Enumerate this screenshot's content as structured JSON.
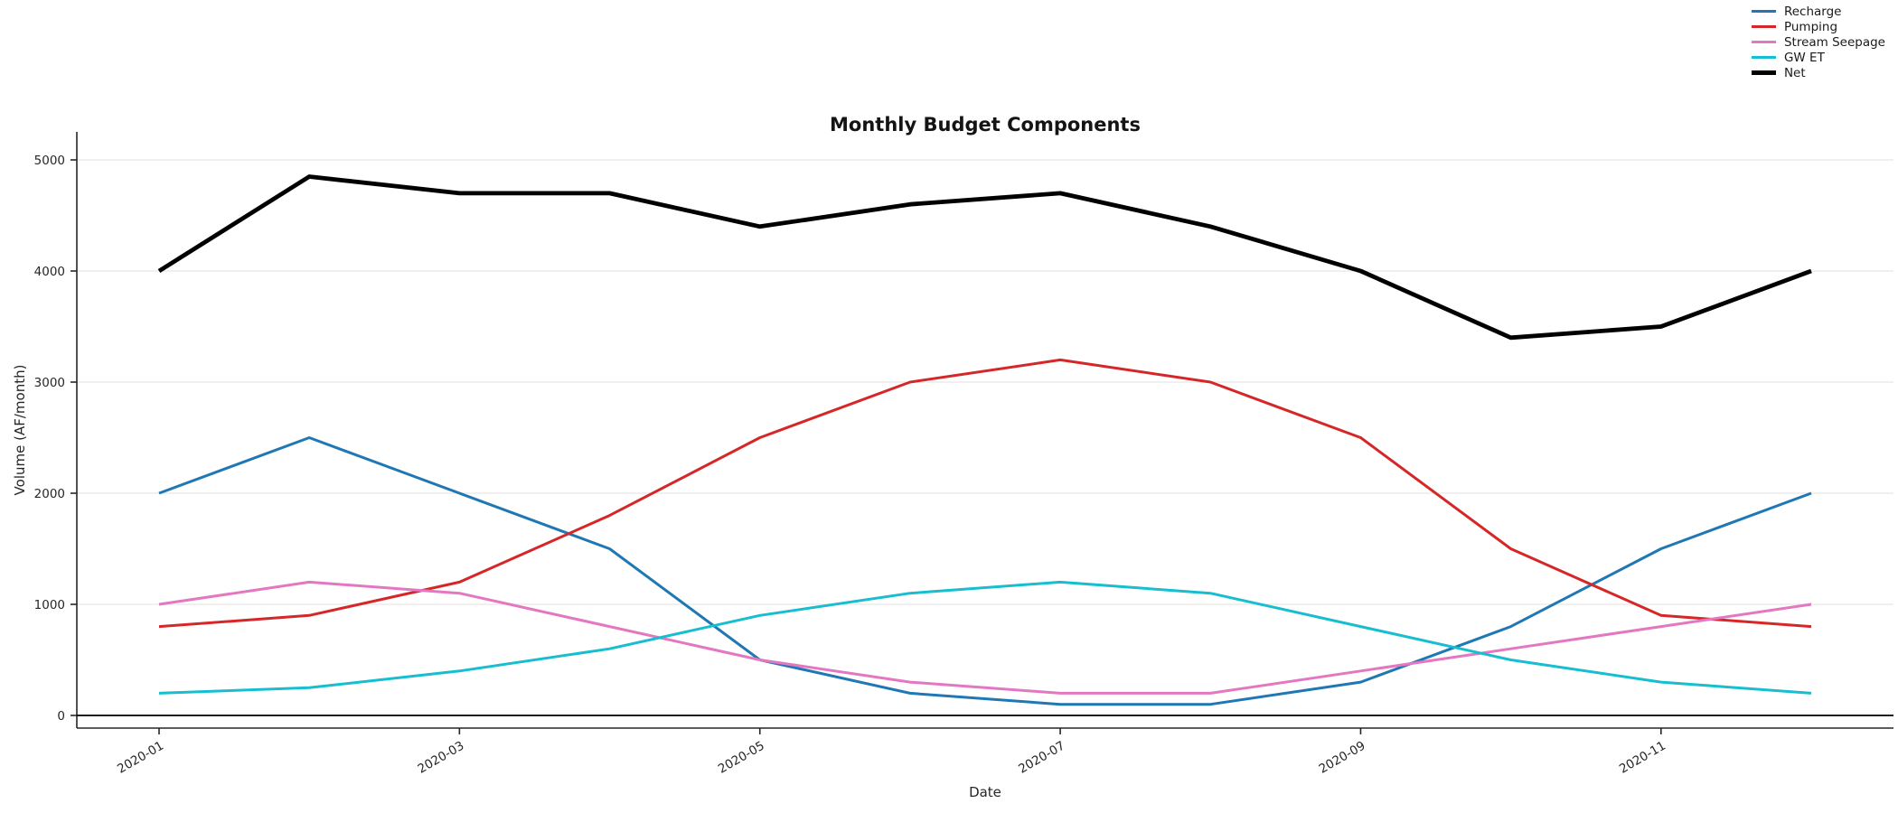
{
  "figure": {
    "title": "Monthly Budget Components",
    "background_color": "#ffffff"
  },
  "axes": {
    "xlabel": "Date",
    "ylabel": "Volume (AF/month)",
    "x_tick_labels": [
      "2020-01",
      "2020-03",
      "2020-05",
      "2020-07",
      "2020-09",
      "2020-11"
    ],
    "x_tick_month_index": [
      0,
      2,
      4,
      6,
      8,
      10
    ],
    "y_tick_values": [
      0,
      1000,
      2000,
      3000,
      4000,
      5000
    ],
    "y_tick_labels": [
      "0",
      "1000",
      "2000",
      "3000",
      "4000",
      "5000"
    ],
    "grid_color": "#ebebeb",
    "spine_color": "#262626",
    "tick_label_color": "#262626",
    "zero_line_color": "#000000"
  },
  "chart_data": {
    "type": "line",
    "title": "Monthly Budget Components",
    "xlabel": "Date",
    "ylabel": "Volume (AF/month)",
    "x": [
      "2020-01",
      "2020-02",
      "2020-03",
      "2020-04",
      "2020-05",
      "2020-06",
      "2020-07",
      "2020-08",
      "2020-09",
      "2020-10",
      "2020-11",
      "2020-12"
    ],
    "series": [
      {
        "name": "Recharge",
        "color": "#1f77b4",
        "line_width": 3,
        "values": [
          2000,
          2500,
          2000,
          1500,
          500,
          200,
          100,
          100,
          300,
          800,
          1500,
          2000
        ]
      },
      {
        "name": "Pumping",
        "color": "#d62728",
        "line_width": 3,
        "values": [
          800,
          900,
          1200,
          1800,
          2500,
          3000,
          3200,
          3000,
          2500,
          1500,
          900,
          800
        ]
      },
      {
        "name": "Stream Seepage",
        "color": "#e377c2",
        "line_width": 3,
        "values": [
          1000,
          1200,
          1100,
          800,
          500,
          300,
          200,
          200,
          400,
          600,
          800,
          1000
        ]
      },
      {
        "name": "GW ET",
        "color": "#17becf",
        "line_width": 3,
        "values": [
          200,
          250,
          400,
          600,
          900,
          1100,
          1200,
          1100,
          800,
          500,
          300,
          200
        ]
      },
      {
        "name": "Net",
        "color": "#000000",
        "line_width": 4.8,
        "values": [
          4000,
          4850,
          4700,
          4700,
          4400,
          4600,
          4700,
          4400,
          4000,
          3400,
          3500,
          4000
        ]
      }
    ],
    "ylim": [
      -115,
      5250
    ],
    "xlim_note": "x margin of about half a month on each side",
    "grid": "horizontal-only",
    "legend_position": "upper right, outside axes",
    "zero_reference_line": 0
  }
}
